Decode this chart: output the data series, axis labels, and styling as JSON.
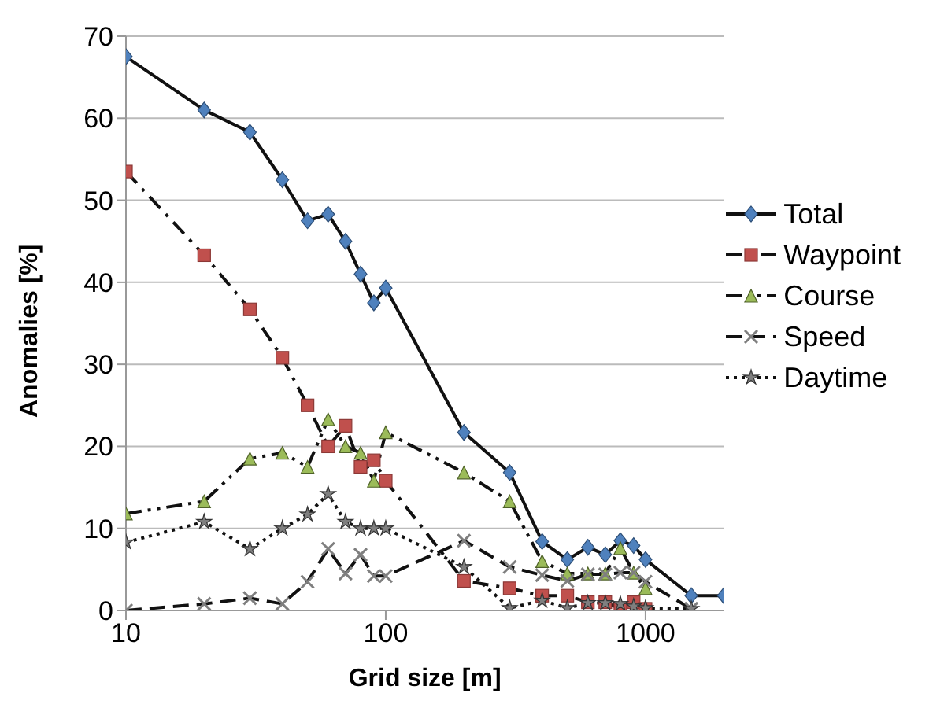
{
  "chart_data": {
    "type": "line",
    "xlabel": "Grid size [m]",
    "ylabel": "Anomalies [%]",
    "x": [
      10,
      20,
      30,
      40,
      50,
      60,
      70,
      80,
      90,
      100,
      200,
      300,
      400,
      500,
      600,
      700,
      800,
      900,
      1000,
      1500,
      2000
    ],
    "series": [
      {
        "name": "Total",
        "color": "#4f81bd",
        "marker": "diamond",
        "line_style": "solid",
        "values": [
          67.5,
          61,
          58.3,
          52.5,
          47.5,
          48.3,
          45,
          41,
          37.5,
          39.3,
          21.7,
          16.8,
          8.4,
          6.2,
          7.7,
          6.8,
          8.5,
          7.9,
          6.2,
          1.8,
          1.8
        ]
      },
      {
        "name": "Waypoint",
        "color": "#c0504d",
        "marker": "square",
        "line_style": "dashdot",
        "values": [
          53.5,
          43.3,
          36.7,
          30.8,
          25,
          20,
          22.5,
          17.5,
          18.3,
          15.8,
          3.6,
          2.7,
          1.8,
          1.8,
          1,
          1,
          0.2,
          1,
          0.2,
          null,
          null
        ]
      },
      {
        "name": "Course",
        "color": "#9bbb59",
        "marker": "triangle",
        "line_style": "dashdotdot",
        "values": [
          11.8,
          13.3,
          18.5,
          19.2,
          17.5,
          23.3,
          20,
          19.2,
          15.8,
          21.7,
          16.8,
          13.3,
          6,
          4.5,
          4.5,
          4.5,
          7.6,
          4.6,
          2.7,
          null,
          null
        ]
      },
      {
        "name": "Speed",
        "color": "#7f7f7f",
        "marker": "cross",
        "line_style": "dashed",
        "values": [
          0,
          0.8,
          1.5,
          0.8,
          3.5,
          7.5,
          4.5,
          6.8,
          4.2,
          4.2,
          8.5,
          5.3,
          4.3,
          3.6,
          4.4,
          4.4,
          4.6,
          4.6,
          3.5,
          0.2,
          null
        ]
      },
      {
        "name": "Daytime",
        "color": "#7f7f7f",
        "marker": "star",
        "line_style": "dotted",
        "values": [
          8.3,
          10.8,
          7.5,
          10,
          11.7,
          14.2,
          10.8,
          10,
          10,
          10,
          5.3,
          0.3,
          1.2,
          0.3,
          0.9,
          0.9,
          0.8,
          0.5,
          0.3,
          0.2,
          null
        ]
      }
    ],
    "xlim": [
      10,
      2000
    ],
    "xticks": [
      10,
      100,
      1000
    ],
    "log": "x",
    "ylim": [
      0,
      70
    ],
    "yticks": [
      0,
      10,
      20,
      30,
      40,
      50,
      60,
      70
    ],
    "grid": "y",
    "legend": "top right"
  }
}
